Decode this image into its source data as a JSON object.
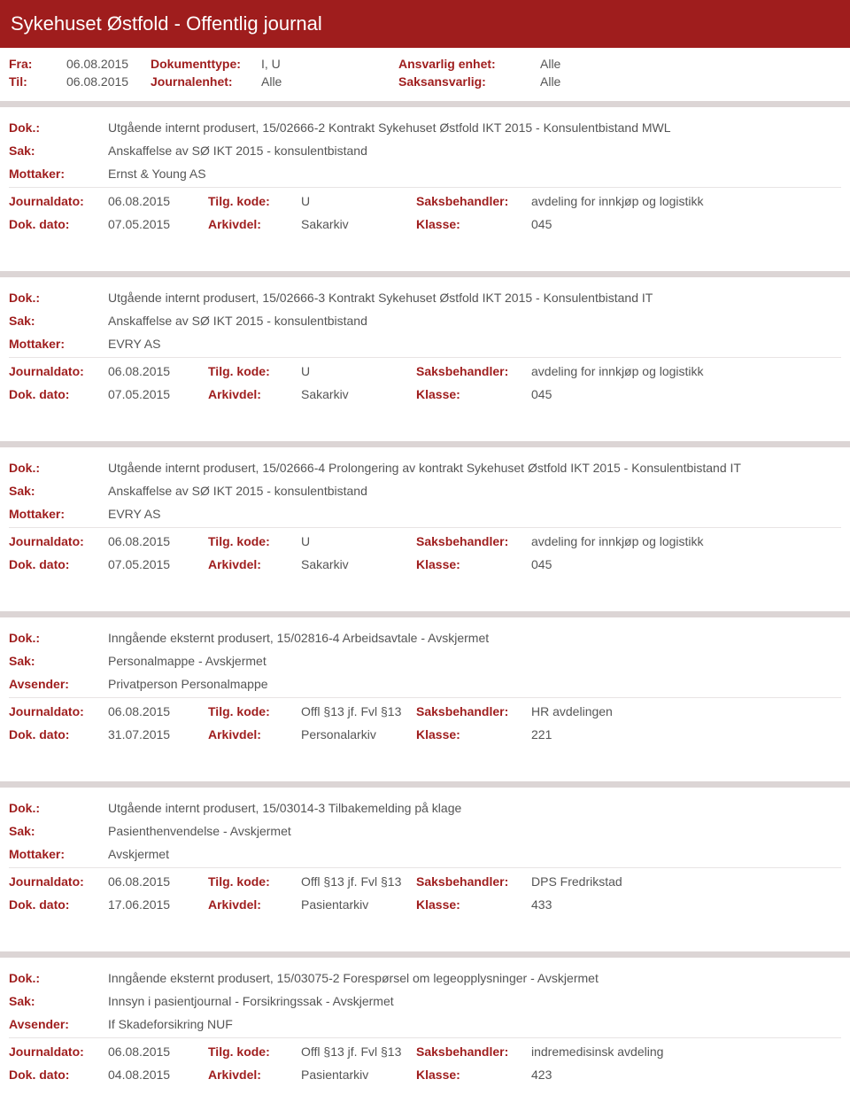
{
  "colors": {
    "header_bg": "#9f1d1d",
    "header_text": "#ffffff",
    "label_color": "#9f1d1d",
    "value_color": "#555555",
    "separator_bg": "#dcd5d5",
    "line_color": "#e8e4e4",
    "page_bg": "#ffffff"
  },
  "typography": {
    "font_family": "Segoe UI",
    "title_fontsize": 22,
    "body_fontsize": 14
  },
  "header": {
    "title": "Sykehuset Østfold - Offentlig journal"
  },
  "meta": {
    "fra_label": "Fra:",
    "fra_value": "06.08.2015",
    "til_label": "Til:",
    "til_value": "06.08.2015",
    "dokumenttype_label": "Dokumenttype:",
    "dokumenttype_value": "I, U",
    "journalenhet_label": "Journalenhet:",
    "journalenhet_value": "Alle",
    "ansvarlig_enhet_label": "Ansvarlig enhet:",
    "ansvarlig_enhet_value": "Alle",
    "saksansvarlig_label": "Saksansvarlig:",
    "saksansvarlig_value": "Alle"
  },
  "labels": {
    "dok": "Dok.:",
    "sak": "Sak:",
    "mottaker": "Mottaker:",
    "avsender": "Avsender:",
    "journaldato": "Journaldato:",
    "dokdato": "Dok. dato:",
    "tilgkode": "Tilg. kode:",
    "arkivdel": "Arkivdel:",
    "saksbehandler": "Saksbehandler:",
    "klasse": "Klasse:"
  },
  "entries": [
    {
      "dok": "Utgående internt produsert, 15/02666-2 Kontrakt Sykehuset Østfold IKT 2015 - Konsulentbistand MWL",
      "sak": "Anskaffelse av SØ IKT 2015 - konsulentbistand",
      "party_label": "Mottaker:",
      "party_value": "Ernst & Young AS",
      "journaldato": "06.08.2015",
      "tilgkode": "U",
      "saksbehandler": "avdeling for innkjøp og logistikk",
      "dokdato": "07.05.2015",
      "arkivdel": "Sakarkiv",
      "klasse": "045"
    },
    {
      "dok": "Utgående internt produsert, 15/02666-3 Kontrakt Sykehuset Østfold IKT 2015 - Konsulentbistand IT",
      "sak": "Anskaffelse av SØ IKT 2015 - konsulentbistand",
      "party_label": "Mottaker:",
      "party_value": "EVRY AS",
      "journaldato": "06.08.2015",
      "tilgkode": "U",
      "saksbehandler": "avdeling for innkjøp og logistikk",
      "dokdato": "07.05.2015",
      "arkivdel": "Sakarkiv",
      "klasse": "045"
    },
    {
      "dok": "Utgående internt produsert, 15/02666-4 Prolongering av kontrakt Sykehuset Østfold IKT 2015 - Konsulentbistand IT",
      "sak": "Anskaffelse av SØ IKT 2015 - konsulentbistand",
      "party_label": "Mottaker:",
      "party_value": "EVRY AS",
      "journaldato": "06.08.2015",
      "tilgkode": "U",
      "saksbehandler": "avdeling for innkjøp og logistikk",
      "dokdato": "07.05.2015",
      "arkivdel": "Sakarkiv",
      "klasse": "045"
    },
    {
      "dok": "Inngående eksternt produsert, 15/02816-4 Arbeidsavtale - Avskjermet",
      "sak": "Personalmappe - Avskjermet",
      "party_label": "Avsender:",
      "party_value": "Privatperson Personalmappe",
      "journaldato": "06.08.2015",
      "tilgkode": "Offl §13 jf. Fvl §13",
      "saksbehandler": "HR avdelingen",
      "dokdato": "31.07.2015",
      "arkivdel": "Personalarkiv",
      "klasse": "221"
    },
    {
      "dok": "Utgående internt produsert, 15/03014-3 Tilbakemelding på klage",
      "sak": "Pasienthenvendelse - Avskjermet",
      "party_label": "Mottaker:",
      "party_value": "Avskjermet",
      "journaldato": "06.08.2015",
      "tilgkode": "Offl §13 jf. Fvl §13",
      "saksbehandler": "DPS Fredrikstad",
      "dokdato": "17.06.2015",
      "arkivdel": "Pasientarkiv",
      "klasse": "433"
    },
    {
      "dok": "Inngående eksternt produsert, 15/03075-2 Forespørsel om legeopplysninger - Avskjermet",
      "sak": "Innsyn i pasientjournal - Forsikringssak - Avskjermet",
      "party_label": "Avsender:",
      "party_value": "If Skadeforsikring NUF",
      "journaldato": "06.08.2015",
      "tilgkode": "Offl §13 jf. Fvl §13",
      "saksbehandler": "indremedisinsk avdeling",
      "dokdato": "04.08.2015",
      "arkivdel": "Pasientarkiv",
      "klasse": "423"
    }
  ]
}
